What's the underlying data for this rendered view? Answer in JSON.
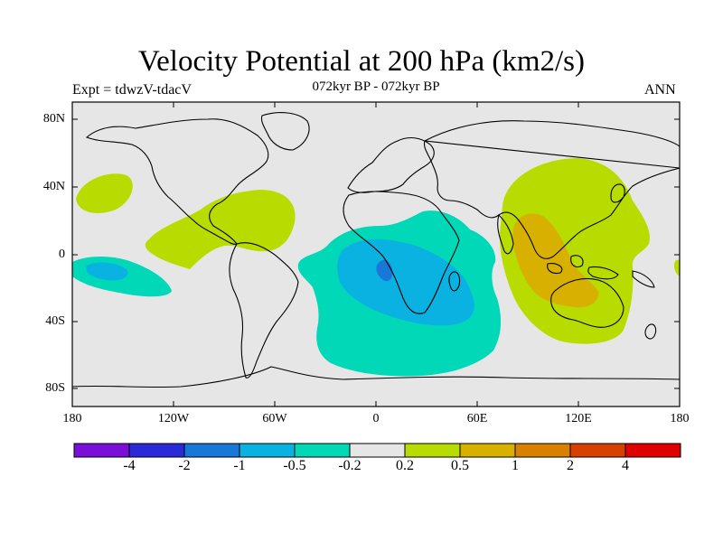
{
  "title": "Velocity Potential at 200 hPa (km2/s)",
  "experiment": "Expt = tdwzV-tdacV",
  "subtitle": "072kyr BP - 072kyr BP",
  "season": "ANN",
  "lat_ticks": [
    "80N",
    "40N",
    "0",
    "40S",
    "80S"
  ],
  "lon_ticks": [
    "180",
    "120W",
    "60W",
    "0",
    "60E",
    "120E",
    "180"
  ],
  "colorbar": {
    "colors": [
      "#7a10d8",
      "#2a2ad8",
      "#1878d8",
      "#0ab2e2",
      "#00d8b8",
      "#e6e6e6",
      "#b8dc00",
      "#d8b000",
      "#d88000",
      "#d84000",
      "#e00000"
    ],
    "labels": [
      "-4",
      "-2",
      "-1",
      "-0.5",
      "-0.2",
      "0.2",
      "0.5",
      "1",
      "2",
      "4"
    ]
  },
  "colors": {
    "background_land_ocean": "#e6e6e6",
    "coastline": "#000000"
  }
}
